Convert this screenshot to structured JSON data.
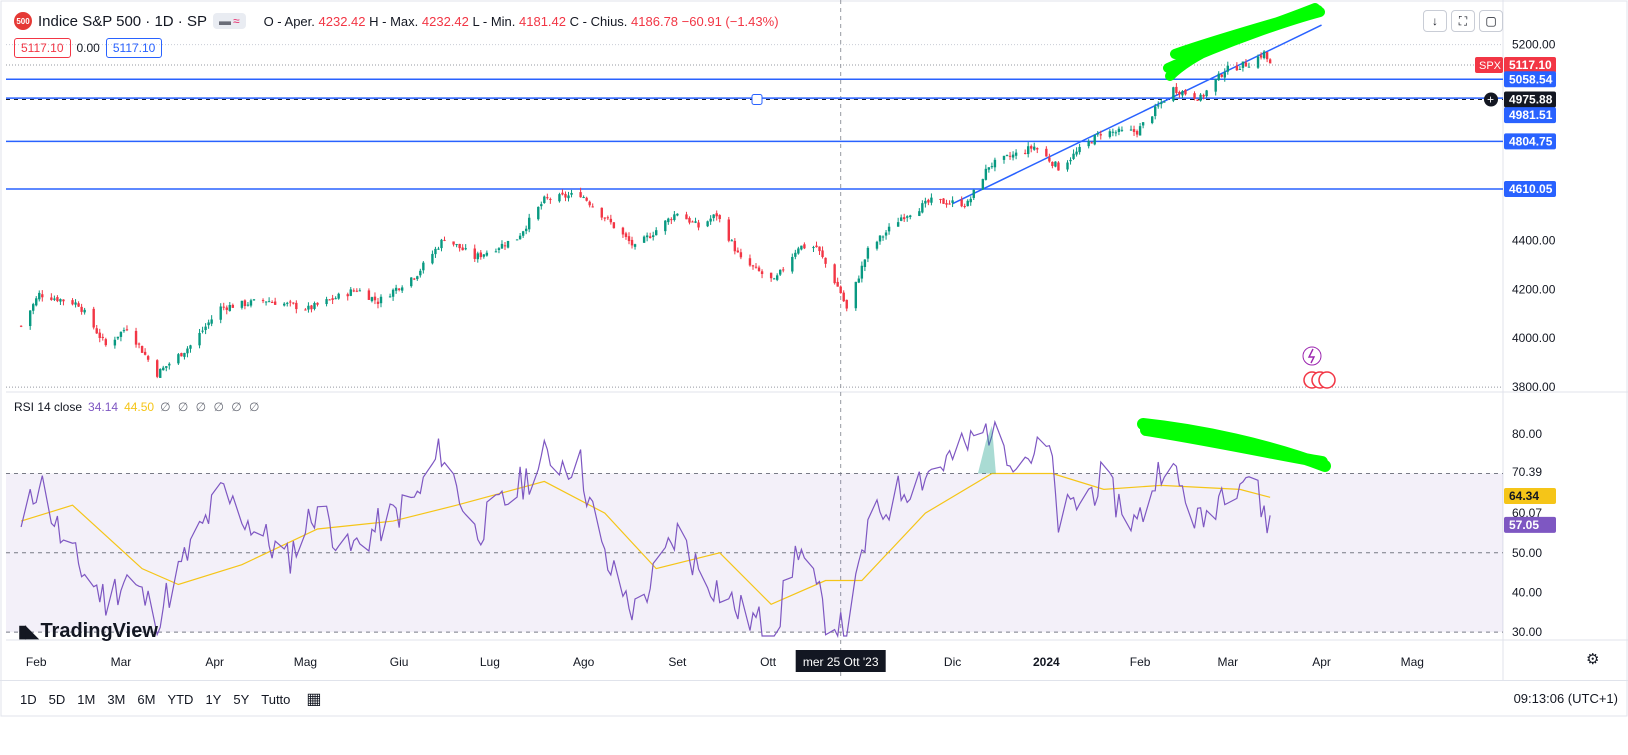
{
  "header": {
    "badge": "500",
    "symbol_title": "Indice S&P 500 · 1D · SP",
    "pill_a": "▬",
    "pill_b": "≈",
    "ohlc_o_label": "O - Aper.",
    "ohlc_o": "4232.42",
    "ohlc_h_label": "H - Max.",
    "ohlc_h": "4232.42",
    "ohlc_l_label": "L - Min.",
    "ohlc_l": "4181.42",
    "ohlc_c_label": "C - Chius.",
    "ohlc_c": "4186.78",
    "ohlc_change": "−60.91 (−1.43%)",
    "sell_price": "5117.10",
    "spread": "0.00",
    "buy_price": "5117.10"
  },
  "toolbar": {
    "down_icon": "↓",
    "fullscreen_icon": "⛶",
    "snapshot_icon": "▢"
  },
  "chart_data": {
    "type": "candlestick",
    "title": "Indice S&P 500 · 1D · SP",
    "x_ticks": [
      "Feb",
      "Mar",
      "Apr",
      "Mag",
      "Giu",
      "Lug",
      "Ago",
      "Set",
      "Ott",
      "mer 25 Ott '23",
      "Dic",
      "2024",
      "Feb",
      "Mar",
      "Apr",
      "Mag"
    ],
    "y_ticks": [
      "5200.00",
      "4400.00",
      "4200.00",
      "4000.00",
      "3800.00"
    ],
    "ylim": [
      3780,
      5260
    ],
    "close_path": [
      {
        "x": "2023-01-27",
        "y": 4050
      },
      {
        "x": "2023-02-02",
        "y": 4180
      },
      {
        "x": "2023-02-15",
        "y": 4140
      },
      {
        "x": "2023-02-24",
        "y": 3970
      },
      {
        "x": "2023-03-03",
        "y": 4045
      },
      {
        "x": "2023-03-13",
        "y": 3855
      },
      {
        "x": "2023-03-24",
        "y": 3970
      },
      {
        "x": "2023-04-03",
        "y": 4125
      },
      {
        "x": "2023-04-18",
        "y": 4155
      },
      {
        "x": "2023-05-02",
        "y": 4120
      },
      {
        "x": "2023-05-18",
        "y": 4200
      },
      {
        "x": "2023-05-25",
        "y": 4150
      },
      {
        "x": "2023-06-07",
        "y": 4265
      },
      {
        "x": "2023-06-16",
        "y": 4410
      },
      {
        "x": "2023-06-26",
        "y": 4330
      },
      {
        "x": "2023-07-10",
        "y": 4410
      },
      {
        "x": "2023-07-19",
        "y": 4565
      },
      {
        "x": "2023-07-31",
        "y": 4590
      },
      {
        "x": "2023-08-10",
        "y": 4470
      },
      {
        "x": "2023-08-18",
        "y": 4370
      },
      {
        "x": "2023-09-01",
        "y": 4515
      },
      {
        "x": "2023-09-08",
        "y": 4455
      },
      {
        "x": "2023-09-14",
        "y": 4505
      },
      {
        "x": "2023-09-22",
        "y": 4320
      },
      {
        "x": "2023-10-03",
        "y": 4230
      },
      {
        "x": "2023-10-11",
        "y": 4375
      },
      {
        "x": "2023-10-17",
        "y": 4373
      },
      {
        "x": "2023-10-25",
        "y": 4187
      },
      {
        "x": "2023-10-27",
        "y": 4117
      },
      {
        "x": "2023-11-03",
        "y": 4358
      },
      {
        "x": "2023-11-14",
        "y": 4495
      },
      {
        "x": "2023-11-24",
        "y": 4560
      },
      {
        "x": "2023-12-06",
        "y": 4550
      },
      {
        "x": "2023-12-13",
        "y": 4705
      },
      {
        "x": "2023-12-28",
        "y": 4783
      },
      {
        "x": "2024-01-05",
        "y": 4697
      },
      {
        "x": "2024-01-19",
        "y": 4840
      },
      {
        "x": "2024-01-31",
        "y": 4845
      },
      {
        "x": "2024-02-12",
        "y": 5020
      },
      {
        "x": "2024-02-21",
        "y": 4981
      },
      {
        "x": "2024-02-29",
        "y": 5096
      },
      {
        "x": "2024-03-08",
        "y": 5124
      },
      {
        "x": "2024-03-13",
        "y": 5165
      },
      {
        "x": "2024-03-15",
        "y": 5117
      }
    ],
    "horizontal_levels": [
      "5058.54",
      "4981.51",
      "4804.75",
      "4610.05"
    ],
    "last_price_label": "5117.10",
    "symbol_tag": "SPX",
    "crosshair_price": "4975.88",
    "trendline": [
      {
        "x": "2023-12-01",
        "y": 4550
      },
      {
        "x": "2024-04-01",
        "y": 5280
      }
    ],
    "grid": false,
    "rsi": {
      "legend_name": "RSI 14 close",
      "rsi_value": "34.14",
      "ma_value": "44.50",
      "extra_values": "∅ ∅ ∅ ∅ ∅ ∅",
      "y_ticks": [
        "80.00",
        "70.39",
        "60.07",
        "50.00",
        "40.00",
        "30.00"
      ],
      "value_tags": [
        "64.34",
        "57.05"
      ],
      "ylim": [
        28,
        84
      ],
      "band": [
        30,
        70
      ],
      "rsi_series": [
        {
          "x": "2023-01-27",
          "y": 55
        },
        {
          "x": "2023-02-02",
          "y": 69
        },
        {
          "x": "2023-02-10",
          "y": 52
        },
        {
          "x": "2023-02-24",
          "y": 38
        },
        {
          "x": "2023-03-03",
          "y": 44
        },
        {
          "x": "2023-03-13",
          "y": 34
        },
        {
          "x": "2023-03-20",
          "y": 45
        },
        {
          "x": "2023-04-03",
          "y": 65
        },
        {
          "x": "2023-04-25",
          "y": 48
        },
        {
          "x": "2023-05-05",
          "y": 62
        },
        {
          "x": "2023-05-15",
          "y": 50
        },
        {
          "x": "2023-05-26",
          "y": 57
        },
        {
          "x": "2023-06-07",
          "y": 64
        },
        {
          "x": "2023-06-15",
          "y": 76
        },
        {
          "x": "2023-06-26",
          "y": 55
        },
        {
          "x": "2023-07-10",
          "y": 66
        },
        {
          "x": "2023-07-19",
          "y": 74
        },
        {
          "x": "2023-07-31",
          "y": 72
        },
        {
          "x": "2023-08-08",
          "y": 48
        },
        {
          "x": "2023-08-18",
          "y": 35
        },
        {
          "x": "2023-09-01",
          "y": 55
        },
        {
          "x": "2023-09-08",
          "y": 46
        },
        {
          "x": "2023-09-22",
          "y": 35
        },
        {
          "x": "2023-10-03",
          "y": 30
        },
        {
          "x": "2023-10-11",
          "y": 52
        },
        {
          "x": "2023-10-20",
          "y": 34
        },
        {
          "x": "2023-10-27",
          "y": 29
        },
        {
          "x": "2023-11-03",
          "y": 56
        },
        {
          "x": "2023-11-14",
          "y": 66
        },
        {
          "x": "2023-11-24",
          "y": 71
        },
        {
          "x": "2023-12-01",
          "y": 74
        },
        {
          "x": "2023-12-14",
          "y": 82
        },
        {
          "x": "2023-12-22",
          "y": 74
        },
        {
          "x": "2024-01-02",
          "y": 76
        },
        {
          "x": "2024-01-05",
          "y": 58
        },
        {
          "x": "2024-01-19",
          "y": 68
        },
        {
          "x": "2024-01-31",
          "y": 57
        },
        {
          "x": "2024-02-09",
          "y": 74
        },
        {
          "x": "2024-02-21",
          "y": 57
        },
        {
          "x": "2024-02-29",
          "y": 67
        },
        {
          "x": "2024-03-08",
          "y": 70
        },
        {
          "x": "2024-03-12",
          "y": 62
        },
        {
          "x": "2024-03-15",
          "y": 57
        }
      ],
      "ma_series": [
        {
          "x": "2023-01-27",
          "y": 58
        },
        {
          "x": "2023-02-13",
          "y": 62
        },
        {
          "x": "2023-03-08",
          "y": 46
        },
        {
          "x": "2023-03-20",
          "y": 42
        },
        {
          "x": "2023-04-10",
          "y": 47
        },
        {
          "x": "2023-05-05",
          "y": 56
        },
        {
          "x": "2023-05-30",
          "y": 58
        },
        {
          "x": "2023-06-20",
          "y": 62
        },
        {
          "x": "2023-07-19",
          "y": 68
        },
        {
          "x": "2023-08-08",
          "y": 60
        },
        {
          "x": "2023-08-25",
          "y": 46
        },
        {
          "x": "2023-09-15",
          "y": 50
        },
        {
          "x": "2023-10-02",
          "y": 37
        },
        {
          "x": "2023-10-20",
          "y": 43
        },
        {
          "x": "2023-11-01",
          "y": 43
        },
        {
          "x": "2023-11-22",
          "y": 60
        },
        {
          "x": "2023-12-14",
          "y": 70
        },
        {
          "x": "2024-01-03",
          "y": 70
        },
        {
          "x": "2024-01-20",
          "y": 66
        },
        {
          "x": "2024-02-08",
          "y": 67
        },
        {
          "x": "2024-03-05",
          "y": 66
        },
        {
          "x": "2024-03-15",
          "y": 64
        }
      ]
    }
  },
  "logo_text": "TradingView",
  "bottom_bar": {
    "timeframes": [
      "1D",
      "5D",
      "1M",
      "3M",
      "6M",
      "YTD",
      "1Y",
      "5Y",
      "Tutto"
    ],
    "clock": "09:13:06 (UTC+1)"
  },
  "colors": {
    "up": "#089981",
    "down": "#f23645",
    "level_line": "#2962ff",
    "rsi_line": "#7e57c2",
    "rsi_ma": "#f5c518",
    "annotation": "#00ff00"
  }
}
